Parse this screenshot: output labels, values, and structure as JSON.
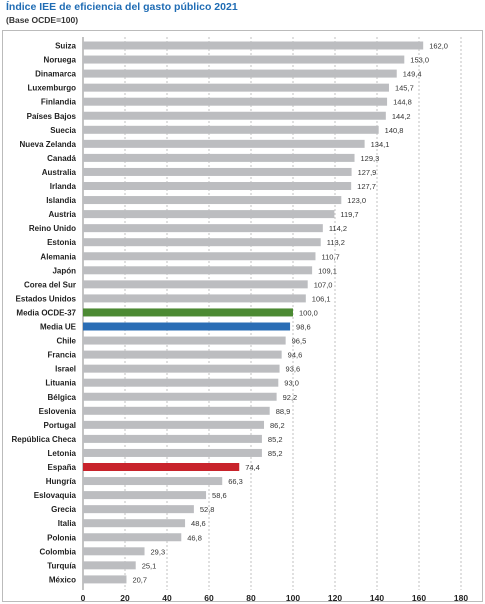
{
  "chart_data": {
    "type": "bar",
    "orientation": "horizontal",
    "title": "Índice IEE de eficiencia del gasto público 2021",
    "subtitle": "(Base OCDE=100)",
    "xlabel": "",
    "ylabel": "",
    "xlim": [
      0,
      180
    ],
    "xticks": [
      "0",
      "20",
      "40",
      "60",
      "80",
      "100",
      "120",
      "140",
      "160",
      "180"
    ],
    "grid": "vertical dashed",
    "categories": [
      "Suiza",
      "Noruega",
      "Dinamarca",
      "Luxemburgo",
      "Finlandia",
      "Países Bajos",
      "Suecia",
      "Nueva Zelanda",
      "Canadá",
      "Australia",
      "Irlanda",
      "Islandia",
      "Austria",
      "Reino Unido",
      "Estonia",
      "Alemania",
      "Japón",
      "Corea del Sur",
      "Estados Unidos",
      "Media OCDE-37",
      "Media UE",
      "Chile",
      "Francia",
      "Israel",
      "Lituania",
      "Bélgica",
      "Eslovenia",
      "Portugal",
      "República Checa",
      "Letonia",
      "España",
      "Hungría",
      "Eslovaquia",
      "Grecia",
      "Italia",
      "Polonia",
      "Colombia",
      "Turquía",
      "México"
    ],
    "values": [
      162.0,
      153.0,
      149.4,
      145.7,
      144.8,
      144.2,
      140.8,
      134.1,
      129.3,
      127.9,
      127.7,
      123.0,
      119.7,
      114.2,
      113.2,
      110.7,
      109.1,
      107.0,
      106.1,
      100.0,
      98.6,
      96.5,
      94.6,
      93.6,
      93.0,
      92.2,
      88.9,
      86.2,
      85.2,
      85.2,
      74.4,
      66.3,
      58.6,
      52.8,
      48.6,
      46.8,
      29.3,
      25.1,
      20.7
    ],
    "value_labels": [
      "162,0",
      "153,0",
      "149,4",
      "145,7",
      "144,8",
      "144,2",
      "140,8",
      "134,1",
      "129,3",
      "127,9",
      "127,7",
      "123,0",
      "119,7",
      "114,2",
      "113,2",
      "110,7",
      "109,1",
      "107,0",
      "106,1",
      "100,0",
      "98,6",
      "96,5",
      "94,6",
      "93,6",
      "93,0",
      "92,2",
      "88,9",
      "86,2",
      "85,2",
      "85,2",
      "74,4",
      "66,3",
      "58,6",
      "52,8",
      "48,6",
      "46,8",
      "29,3",
      "25,1",
      "20,7"
    ],
    "colors": {
      "default": "#bcbdc0",
      "Media OCDE-37": "#4c8a33",
      "Media UE": "#2a6db5",
      "España": "#c8232b"
    }
  }
}
